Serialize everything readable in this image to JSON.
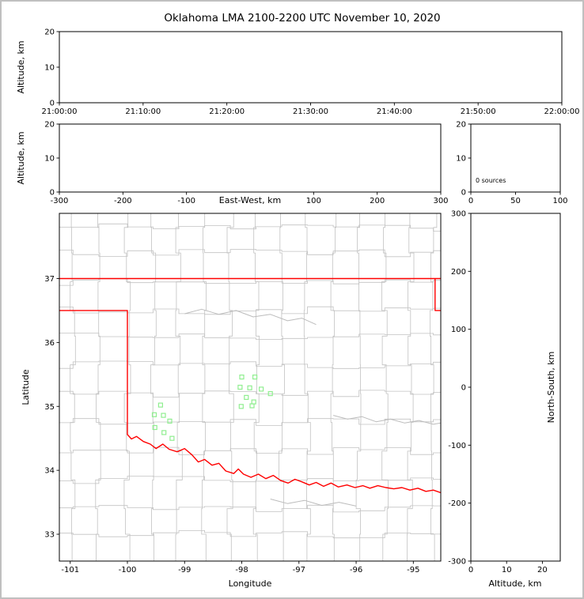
{
  "chart_data": {
    "type": "scatter",
    "title": "Oklahoma LMA 2100-2200 UTC November 10, 2020",
    "legend": "none",
    "grid": "off",
    "panels": {
      "time_height": {
        "ylabel": "Altitude, km",
        "ylim": [
          0,
          20
        ],
        "yticks": [
          0,
          10,
          20
        ],
        "xtick_labels": [
          "21:00:00",
          "21:10:00",
          "21:20:00",
          "21:30:00",
          "21:40:00",
          "21:50:00",
          "22:00:00"
        ],
        "series_points": []
      },
      "ew_height": {
        "ylabel": "Altitude, km",
        "xlabel": "East-West, km",
        "ylim": [
          0,
          20
        ],
        "yticks": [
          0,
          10,
          20
        ],
        "xlim": [
          -300,
          300
        ],
        "xticks": [
          -300,
          -200,
          -100,
          100,
          200,
          300
        ],
        "series_points": []
      },
      "source_histogram": {
        "annotation": "0 sources",
        "ylim": [
          0,
          20
        ],
        "yticks": [
          0,
          10,
          20
        ],
        "xlim": [
          0,
          100
        ],
        "xticks": [
          0,
          50,
          100
        ],
        "values": []
      },
      "plan_view_map": {
        "xlabel": "Longitude",
        "ylabel": "Latitude",
        "xlim": [
          -101.19,
          -94.52
        ],
        "ylim": [
          32.58,
          38.02
        ],
        "xticks": [
          -101,
          -100,
          -99,
          -98,
          -97,
          -96,
          -95
        ],
        "yticks": [
          33,
          34,
          35,
          36,
          37
        ],
        "colors": {
          "state_border": "#ff0000",
          "county_lines": "#c2c2c2",
          "rivers": "#bcbcbc",
          "stations": "#90ee90"
        },
        "state_border_lines": [
          [
            [
              -101.19,
              37.0
            ],
            [
              -94.52,
              37.0
            ]
          ],
          [
            [
              -94.62,
              37.0
            ],
            [
              -94.62,
              36.5
            ],
            [
              -94.52,
              36.5
            ]
          ],
          [
            [
              -101.19,
              36.5
            ],
            [
              -100.0,
              36.5
            ],
            [
              -100.0,
              34.56
            ],
            [
              -99.93,
              34.49
            ],
            [
              -99.84,
              34.53
            ],
            [
              -99.72,
              34.45
            ],
            [
              -99.6,
              34.41
            ],
            [
              -99.5,
              34.34
            ],
            [
              -99.38,
              34.41
            ],
            [
              -99.27,
              34.33
            ],
            [
              -99.13,
              34.29
            ],
            [
              -99.0,
              34.34
            ],
            [
              -98.87,
              34.24
            ],
            [
              -98.76,
              34.13
            ],
            [
              -98.65,
              34.17
            ],
            [
              -98.52,
              34.08
            ],
            [
              -98.4,
              34.11
            ],
            [
              -98.28,
              33.99
            ],
            [
              -98.14,
              33.95
            ],
            [
              -98.06,
              34.02
            ],
            [
              -97.97,
              33.94
            ],
            [
              -97.84,
              33.89
            ],
            [
              -97.71,
              33.94
            ],
            [
              -97.58,
              33.87
            ],
            [
              -97.45,
              33.92
            ],
            [
              -97.32,
              33.84
            ],
            [
              -97.19,
              33.8
            ],
            [
              -97.07,
              33.86
            ],
            [
              -96.95,
              33.82
            ],
            [
              -96.82,
              33.77
            ],
            [
              -96.7,
              33.81
            ],
            [
              -96.57,
              33.75
            ],
            [
              -96.44,
              33.8
            ],
            [
              -96.31,
              33.74
            ],
            [
              -96.16,
              33.77
            ],
            [
              -96.02,
              33.73
            ],
            [
              -95.88,
              33.76
            ],
            [
              -95.76,
              33.72
            ],
            [
              -95.62,
              33.76
            ],
            [
              -95.48,
              33.73
            ],
            [
              -95.34,
              33.71
            ],
            [
              -95.2,
              33.73
            ],
            [
              -95.06,
              33.69
            ],
            [
              -94.92,
              33.72
            ],
            [
              -94.78,
              33.67
            ],
            [
              -94.65,
              33.69
            ],
            [
              -94.52,
              33.65
            ]
          ]
        ],
        "river_lines": [
          [
            [
              -96.4,
              34.86
            ],
            [
              -96.15,
              34.8
            ],
            [
              -95.9,
              34.84
            ],
            [
              -95.65,
              34.76
            ],
            [
              -95.4,
              34.8
            ],
            [
              -95.15,
              34.74
            ],
            [
              -94.9,
              34.78
            ],
            [
              -94.65,
              34.72
            ],
            [
              -94.52,
              34.74
            ]
          ],
          [
            [
              -99.0,
              36.45
            ],
            [
              -98.7,
              36.52
            ],
            [
              -98.4,
              36.44
            ],
            [
              -98.1,
              36.5
            ],
            [
              -97.8,
              36.4
            ],
            [
              -97.5,
              36.44
            ],
            [
              -97.2,
              36.34
            ],
            [
              -96.95,
              36.38
            ],
            [
              -96.7,
              36.28
            ]
          ],
          [
            [
              -97.5,
              33.55
            ],
            [
              -97.2,
              33.48
            ],
            [
              -96.9,
              33.53
            ],
            [
              -96.6,
              33.45
            ],
            [
              -96.3,
              33.5
            ],
            [
              -96.0,
              33.44
            ]
          ]
        ],
        "county_grid": {
          "lons": [
            -100.95,
            -100.5,
            -100.0,
            -99.55,
            -99.1,
            -98.65,
            -98.2,
            -97.75,
            -97.3,
            -96.85,
            -96.4,
            -95.95,
            -95.5,
            -95.05,
            -94.65
          ],
          "lats": [
            33.0,
            33.4,
            33.85,
            34.3,
            34.75,
            35.2,
            35.65,
            36.1,
            36.5,
            36.95,
            37.4,
            37.8
          ],
          "jitter_deg": 0.06,
          "seed": 11
        },
        "stations_lon_lat": [
          [
            -98.0,
            35.46
          ],
          [
            -97.77,
            35.46
          ],
          [
            -98.03,
            35.3
          ],
          [
            -97.86,
            35.29
          ],
          [
            -97.66,
            35.27
          ],
          [
            -97.5,
            35.2
          ],
          [
            -97.92,
            35.14
          ],
          [
            -97.79,
            35.07
          ],
          [
            -98.01,
            35.0
          ],
          [
            -97.82,
            35.01
          ],
          [
            -99.42,
            35.02
          ],
          [
            -99.53,
            34.87
          ],
          [
            -99.37,
            34.86
          ],
          [
            -99.26,
            34.77
          ],
          [
            -99.52,
            34.67
          ],
          [
            -99.36,
            34.59
          ],
          [
            -99.22,
            34.5
          ]
        ]
      },
      "ns_height": {
        "xlabel": "Altitude, km",
        "ylabel": "North-South, km",
        "ylim": [
          -300,
          300
        ],
        "yticks": [
          300,
          200,
          100,
          0,
          -100,
          -200,
          -300
        ],
        "xlim": [
          0,
          25
        ],
        "xticks": [
          0,
          10,
          20
        ],
        "series_points": []
      }
    }
  }
}
